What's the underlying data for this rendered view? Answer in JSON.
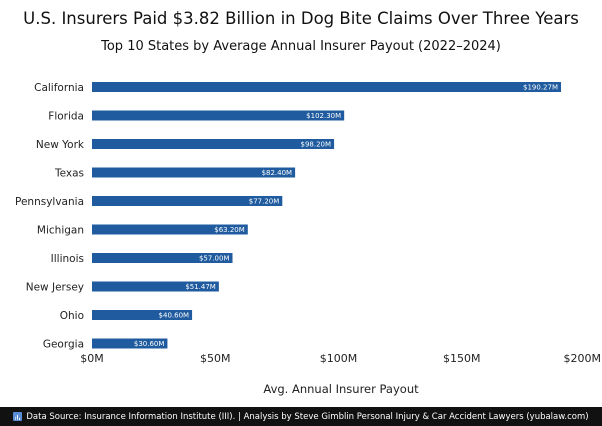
{
  "chart_data": {
    "type": "bar",
    "orientation": "horizontal",
    "title": "U.S. Insurers Paid $3.82 Billion in Dog Bite Claims Over Three Years",
    "subtitle": "Top 10 States by Average Annual Insurer Payout (2022–2024)",
    "xlabel": "Avg. Annual Insurer Payout",
    "ylabel": "",
    "xlim": [
      0,
      200
    ],
    "x_ticks": [
      0,
      50,
      100,
      150,
      200
    ],
    "x_tick_labels": [
      "$0M",
      "$50M",
      "$100M",
      "$150M",
      "$200M"
    ],
    "categories": [
      "California",
      "Florida",
      "New York",
      "Texas",
      "Pennsylvania",
      "Michigan",
      "Illinois",
      "New Jersey",
      "Ohio",
      "Georgia"
    ],
    "values": [
      190.27,
      102.3,
      98.2,
      82.4,
      77.2,
      63.2,
      57.0,
      51.47,
      40.6,
      30.6
    ],
    "data_labels": [
      "$190.27M",
      "$102.30M",
      "$98.20M",
      "$82.40M",
      "$77.20M",
      "$63.20M",
      "$57.00M",
      "$51.47M",
      "$40.60M",
      "$30.60M"
    ],
    "bar_color": "#1f5b9e",
    "grid": false,
    "legend": "none"
  },
  "footer": {
    "icon": "bar-chart-icon",
    "text": "Data Source: Insurance Information Institute (III). | Analysis by Steve Gimblin Personal Injury & Car Accident Lawyers (yubalaw.com)"
  }
}
